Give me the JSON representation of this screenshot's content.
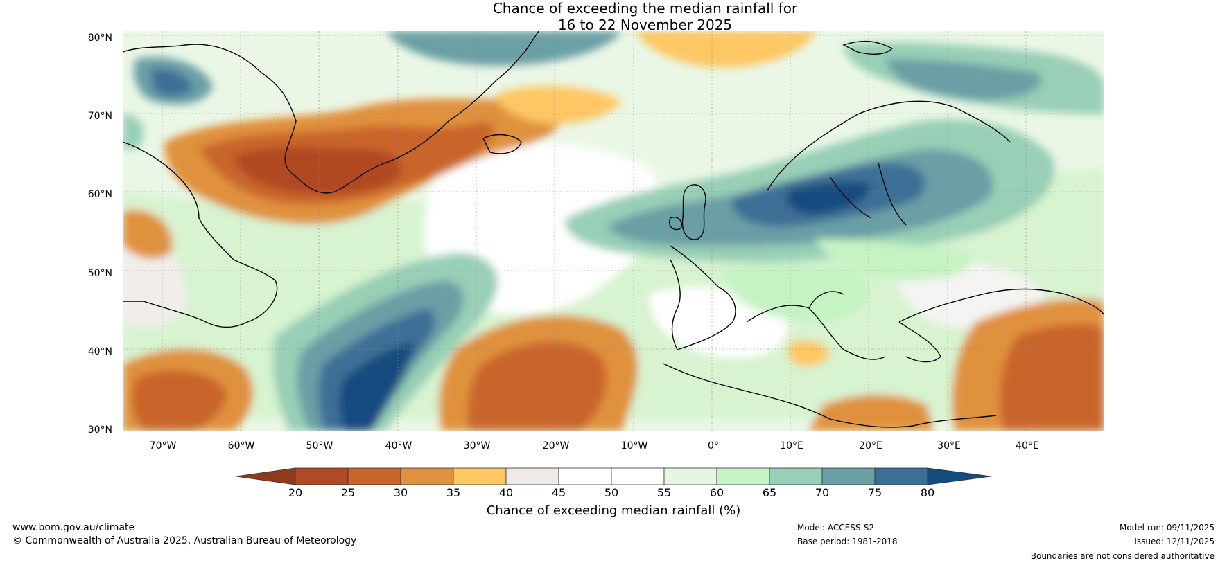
{
  "title": {
    "line1": "Chance of exceeding the median rainfall for",
    "line2": "16 to 22 November 2025"
  },
  "map": {
    "region": "North Atlantic and Europe",
    "latitude_labels": [
      "80°N",
      "70°N",
      "60°N",
      "50°N",
      "40°N",
      "30°N"
    ],
    "longitude_labels": [
      "70°W",
      "60°W",
      "50°W",
      "40°W",
      "30°W",
      "20°W",
      "10°W",
      "0°",
      "10°E",
      "20°E",
      "30°E",
      "40°E"
    ]
  },
  "colorbar": {
    "label": "Chance of exceeding median rainfall (%)",
    "ticks": [
      "20",
      "25",
      "30",
      "35",
      "40",
      "45",
      "50",
      "55",
      "60",
      "65",
      "70",
      "75",
      "80"
    ],
    "colors": [
      "#8e3a1c",
      "#b04a24",
      "#c9652b",
      "#e0913e",
      "#fdc864",
      "#eeebe6",
      "#ffffff",
      "#ffffff",
      "#e6f6e3",
      "#c6f3c4",
      "#98cfb6",
      "#6a9fa6",
      "#3c6f96",
      "#154b7f"
    ]
  },
  "footer": {
    "website": "www.bom.gov.au/climate",
    "copyright": "© Commonwealth of Australia 2025, Australian Bureau of Meteorology",
    "model": "Model: ACCESS-S2",
    "base_period": "Base period: 1981-2018",
    "model_run": "Model run: 09/11/2025",
    "issued": "Issued: 12/11/2025",
    "disclaimer": "Boundaries are not considered authoritative"
  }
}
